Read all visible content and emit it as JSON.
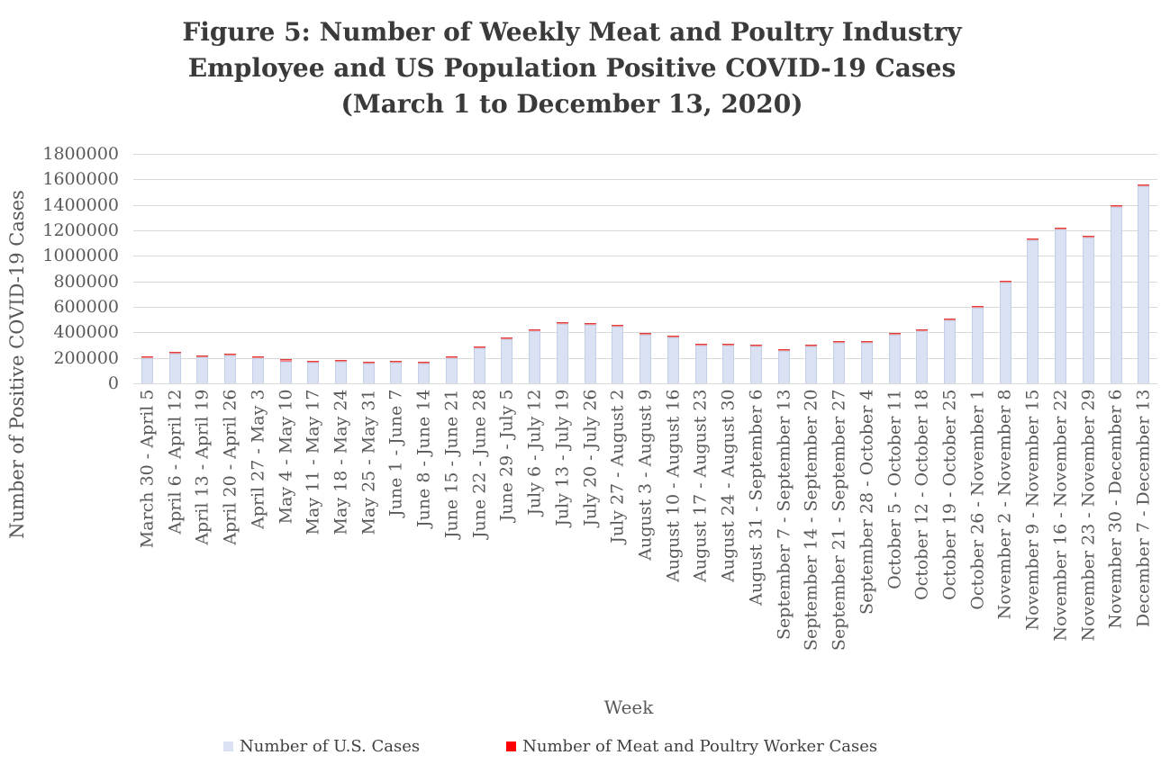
{
  "title": {
    "lines": [
      "Figure 5: Number of Weekly Meat and Poultry Industry",
      "Employee and US Population Positive COVID-19 Cases",
      "(March 1 to December 13, 2020)"
    ]
  },
  "chart_data": {
    "type": "bar",
    "stacked": true,
    "title": "Figure 5: Number of Weekly Meat and Poultry Industry Employee and US Population Positive COVID-19 Cases (March 1 to December 13, 2020)",
    "xlabel": "Week",
    "ylabel": "Number of Positive COVID-19 Cases",
    "ylim": [
      0,
      1800000
    ],
    "ytick_step": 200000,
    "ytick_labels_top_to_bottom": [
      "1800000",
      "1600000",
      "1400000",
      "1200000",
      "1000000",
      "800000",
      "600000",
      "400000",
      "200000",
      "0"
    ],
    "grid": "horizontal",
    "legend_position": "bottom",
    "categories": [
      "March 30 - April 5",
      "April 6 - April 12",
      "April 13 - April 19",
      "April 20 - April 26",
      "April 27 - May 3",
      "May 4 - May 10",
      "May 11 - May 17",
      "May 18 - May 24",
      "May 25 - May 31",
      "June 1 - June 7",
      "June 8 - June 14",
      "June 15 - June 21",
      "June 22 - June 28",
      "June 29 - July 5",
      "July 6 - July 12",
      "July 13 - July 19",
      "July 20 - July 26",
      "July 27 - August 2",
      "August 3 - August 9",
      "August 10 - August 16",
      "August 17 - August 23",
      "August 24 - August 30",
      "August 31 - September 6",
      "September 7 - September 13",
      "September 14 - September 20",
      "September 21 - September 27",
      "September 28 - October 4",
      "October 5 - October 11",
      "October 12 - October 18",
      "October 19 - October 25",
      "October 26 - November 1",
      "November 2 - November 8",
      "November 9 - November 15",
      "November 16 - November 22",
      "November 23 - November 29",
      "November 30 - December 6",
      "December 7 - December 13"
    ],
    "series": [
      {
        "name": "Number of U.S. Cases",
        "color": "#d9e1f2",
        "values": [
          200000,
          233000,
          207000,
          221000,
          195000,
          172000,
          165000,
          167000,
          153000,
          160000,
          155000,
          195000,
          275000,
          346000,
          409000,
          466000,
          461000,
          442000,
          383000,
          360000,
          299000,
          296000,
          289000,
          254000,
          292000,
          318000,
          315000,
          381000,
          409000,
          495000,
          592000,
          791000,
          1122000,
          1207000,
          1141000,
          1382000,
          1543000
        ]
      },
      {
        "name": "Number of Meat and Poultry Worker Cases",
        "color": "#ff0000",
        "values": [
          9000,
          9000,
          9000,
          9000,
          12000,
          16000,
          9000,
          11000,
          9000,
          9000,
          7000,
          7000,
          7000,
          9000,
          14000,
          9000,
          9000,
          9000,
          9000,
          9000,
          9000,
          7000,
          7000,
          7000,
          7000,
          7000,
          9000,
          9000,
          9000,
          9000,
          9000,
          9000,
          9000,
          9000,
          9000,
          9000,
          9000
        ]
      }
    ]
  },
  "colors": {
    "bar_us_fill": "#d9e1f2",
    "bar_us_border": "#c2cfe9",
    "bar_worker_fill": "#f28b8b",
    "bar_worker_top": "#e03c3c",
    "legend_us_swatch": "#d9e1f2",
    "legend_worker_swatch": "#ff0000",
    "gridline": "#d9d9d9",
    "axis_text": "#595959",
    "title_text": "#3a3a3a"
  }
}
